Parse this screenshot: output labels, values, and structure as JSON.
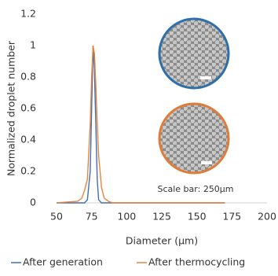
{
  "chart_data": {
    "type": "line",
    "x_label": "Diameter (μm)",
    "y_label": "Normalized droplet number",
    "annotation": "Scale bar: 250μm",
    "x": [
      50,
      65,
      68,
      70,
      72,
      74,
      75,
      76,
      77,
      78,
      79,
      80,
      82,
      84,
      87,
      90,
      100,
      170
    ],
    "series": [
      {
        "name": "After generation",
        "color": "#3f6fb5",
        "values": [
          0,
          0,
          0,
          0,
          0.02,
          0.2,
          0.6,
          1,
          0.85,
          0.5,
          0.15,
          0.02,
          0,
          0,
          0,
          0,
          0,
          0
        ]
      },
      {
        "name": "After thermocycling",
        "color": "#e8833a",
        "values": [
          0,
          0.01,
          0.03,
          0.08,
          0.15,
          0.5,
          0.8,
          1,
          0.95,
          0.75,
          0.5,
          0.3,
          0.1,
          0.03,
          0.01,
          0,
          0,
          0
        ]
      }
    ],
    "xlim": [
      50,
      200
    ],
    "xticks": [
      50,
      75,
      100,
      125,
      150,
      175,
      200
    ],
    "ylim": [
      0,
      1.2
    ],
    "yticks": [
      0,
      0.2,
      0.4,
      0.6,
      0.8,
      1,
      1.2
    ]
  }
}
